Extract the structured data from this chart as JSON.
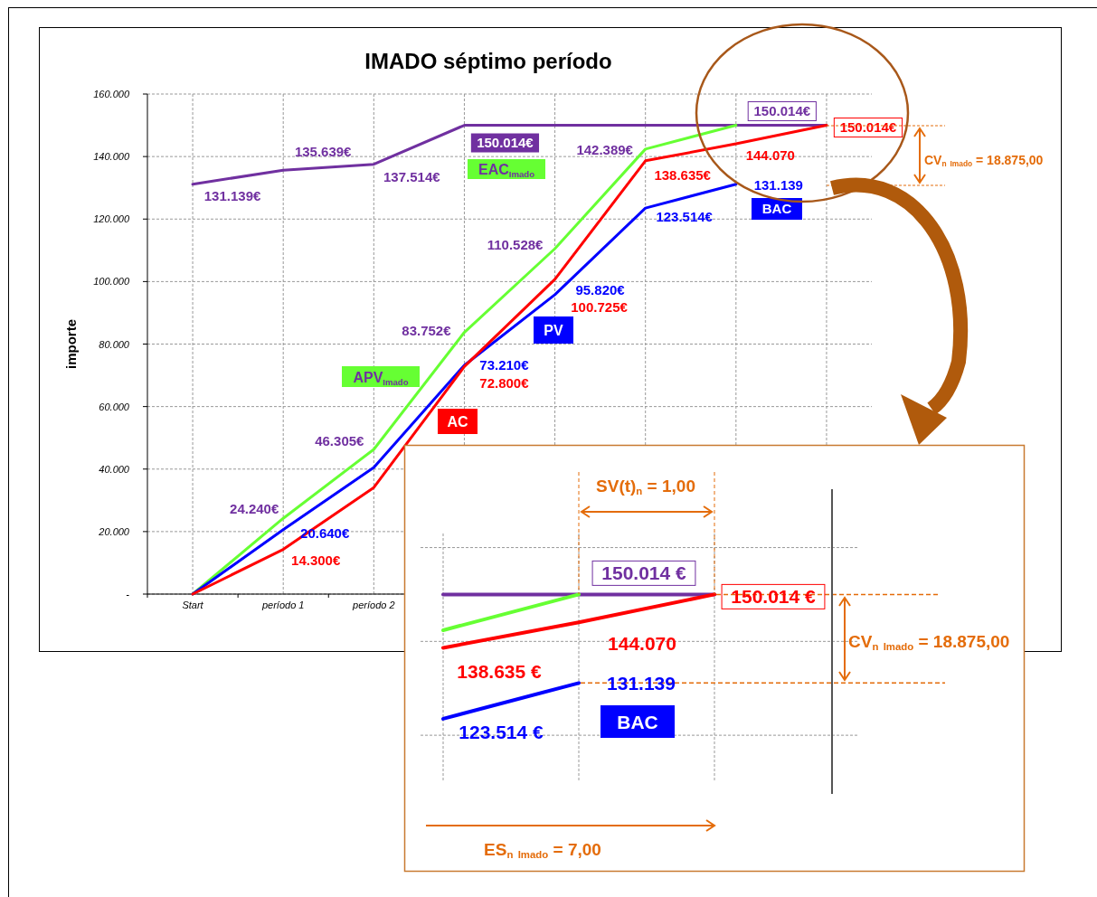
{
  "chart_data": [
    {
      "type": "line",
      "title": "IMADO séptimo período",
      "ylabel": "importe",
      "categories": [
        "Start",
        "período 1",
        "período 2",
        null,
        null,
        null,
        null,
        null
      ],
      "ylim": [
        0,
        160000
      ],
      "yticks": [
        {
          "value": 0,
          "label": "-"
        },
        {
          "value": 20000,
          "label": "20.000"
        },
        {
          "value": 40000,
          "label": "40.000"
        },
        {
          "value": 60000,
          "label": "60.000"
        },
        {
          "value": 80000,
          "label": "80.000"
        },
        {
          "value": 100000,
          "label": "100.000"
        },
        {
          "value": 120000,
          "label": "120.000"
        },
        {
          "value": 140000,
          "label": "140.000"
        },
        {
          "value": 160000,
          "label": "160.000"
        }
      ],
      "grid": true,
      "series": [
        {
          "name": "EAC$_{Imado}$",
          "color": "#7030a0",
          "values": [
            131139,
            135639,
            137514,
            150014,
            150014,
            150014,
            150014,
            150014
          ],
          "value_labels": [
            "131.139€",
            "135.639€",
            "137.514€",
            "150.014€",
            null,
            null,
            "150.014€",
            null
          ]
        },
        {
          "name": "APV$_{Imado}$",
          "color": "#66ff33",
          "values": [
            0,
            24240,
            46305,
            83752,
            110528,
            142389,
            150014,
            null
          ],
          "value_labels": [
            null,
            "24.240€",
            "46.305€",
            "83.752€",
            "110.528€",
            "142.389€",
            null,
            null
          ]
        },
        {
          "name": "PV",
          "color": "#0000ff",
          "values": [
            0,
            20640,
            40500,
            73210,
            95820,
            123514,
            131139,
            null
          ],
          "value_labels": [
            null,
            "20.640€",
            null,
            "73.210€",
            "95.820€",
            "123.514€",
            "131.139",
            null
          ]
        },
        {
          "name": "AC",
          "color": "#ff0000",
          "values": [
            0,
            14300,
            34100,
            72800,
            100725,
            138635,
            144070,
            150014
          ],
          "value_labels": [
            null,
            "14.300€",
            null,
            "72.800€",
            "100.725€",
            "138.635€",
            "144.070",
            "150.014€"
          ]
        }
      ],
      "annotations": [
        "BAC",
        "CV$_{n}$ $_{Imado}$ = 18.875,00"
      ]
    },
    {
      "type": "line",
      "categories": [
        null,
        null,
        null
      ],
      "ylim": [
        110000,
        163000
      ],
      "yticks": [
        {
          "value": 120000,
          "label": null
        },
        {
          "value": 140000,
          "label": null
        },
        {
          "value": 160000,
          "label": null
        }
      ],
      "tick_labels": false,
      "grid": true,
      "series": [
        {
          "color": "#7030a0",
          "values": [
            150014,
            150014,
            150014
          ],
          "value_labels": [
            null,
            "150.014 €",
            null
          ]
        },
        {
          "color": "#66ff33",
          "values": [
            142389,
            150014,
            null
          ]
        },
        {
          "color": "#0000ff",
          "values": [
            123514,
            131139,
            null
          ],
          "value_labels": [
            "123.514 €",
            "131.139",
            null
          ]
        },
        {
          "color": "#ff0000",
          "values": [
            138635,
            144070,
            150014
          ],
          "value_labels": [
            "138.635 €",
            "144.070",
            "150.014 €"
          ]
        }
      ],
      "ref_lines": [
        {
          "axis": "y",
          "value": 150014,
          "color": "#e46c0a",
          "line_style": "dashed"
        },
        {
          "axis": "y",
          "value": 131139,
          "color": "#e46c0a",
          "line_style": "dashed"
        }
      ],
      "annotations": [
        "SV(t)$_{n}$ = 1,00",
        "CV$_{n}$ $_{Imado}$ = 18.875,00",
        "ES$_{n}$ $_{Imado}$ = 7,00",
        "BAC"
      ]
    }
  ]
}
